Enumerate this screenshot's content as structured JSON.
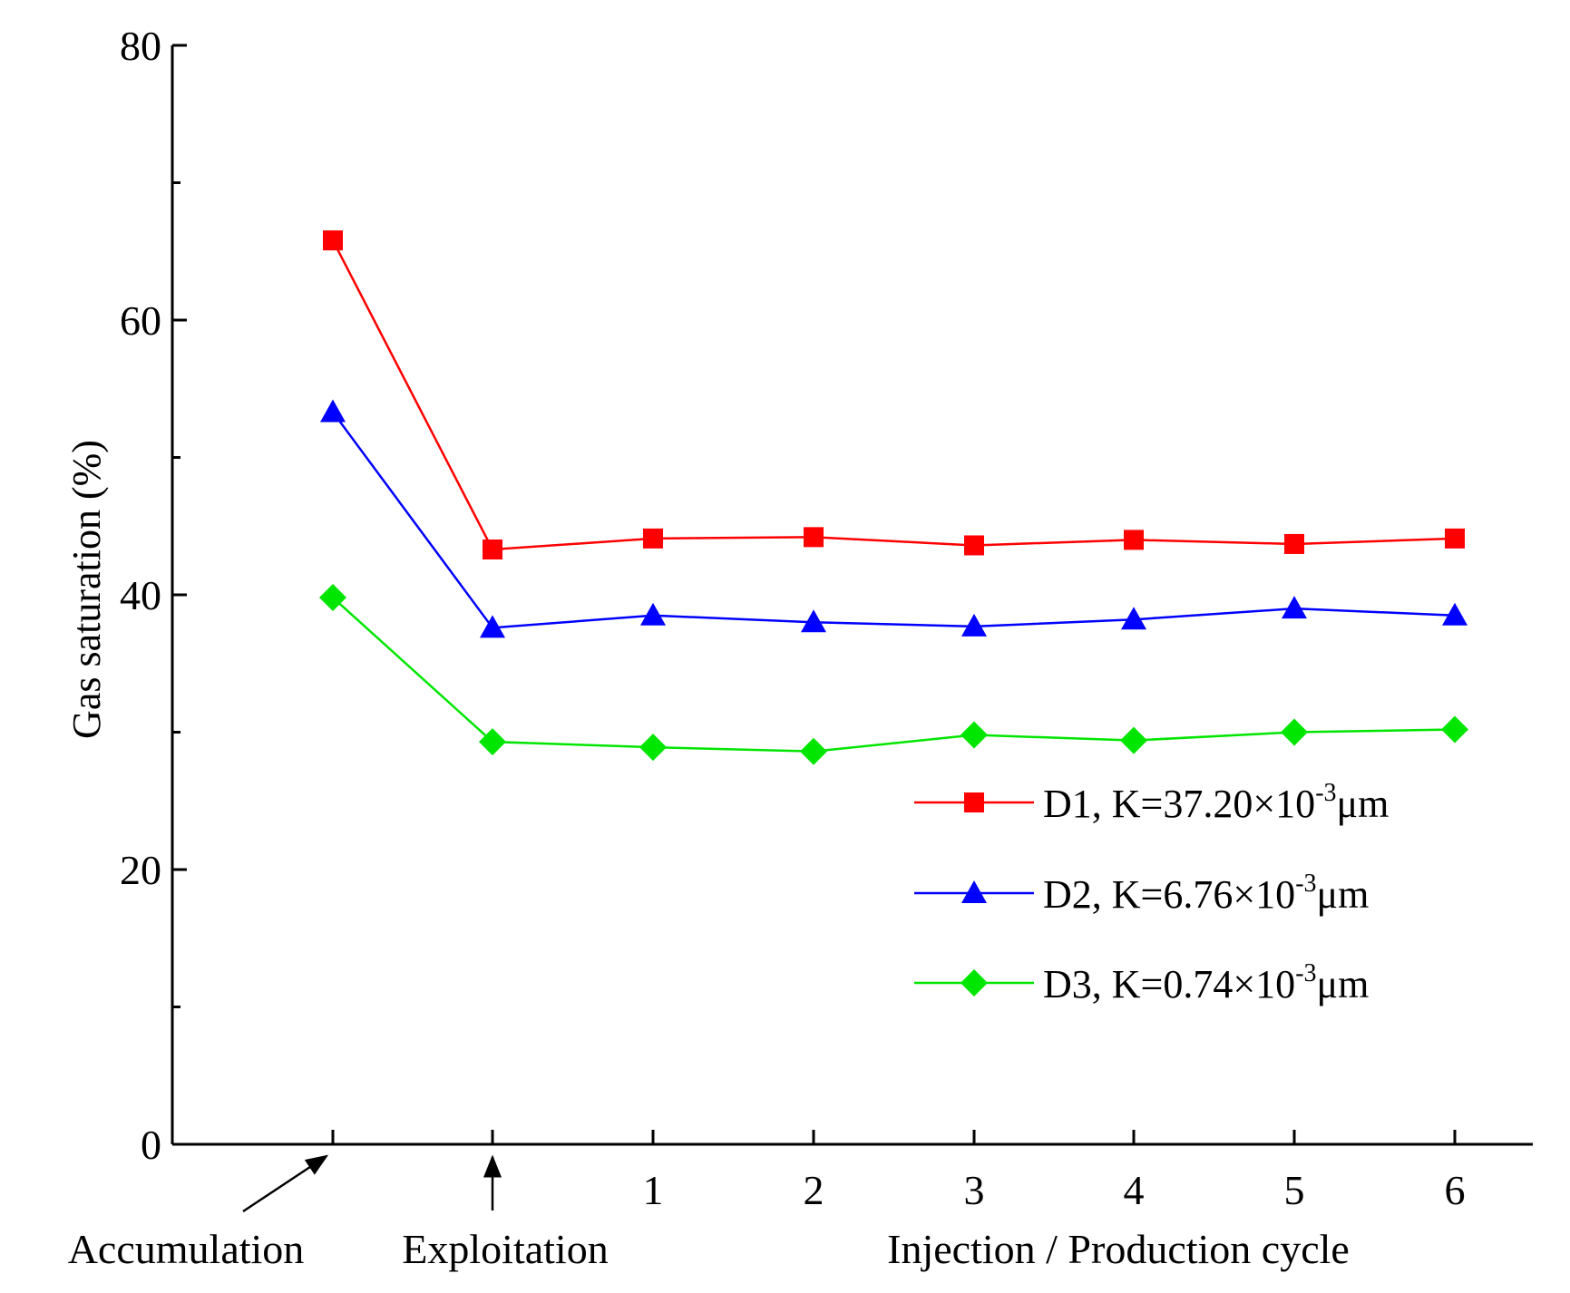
{
  "chart_data": {
    "type": "line",
    "title": "",
    "xlabel": "Injection / Production cycle",
    "ylabel": "Gas saturation (%)",
    "ylim": [
      0,
      80
    ],
    "yticks": [
      "0",
      "20",
      "40",
      "60",
      "80"
    ],
    "categories": [
      "",
      "",
      "1",
      "2",
      "3",
      "4",
      "5",
      "6"
    ],
    "stage_labels": {
      "accumulation": "Accumulation",
      "exploitation": "Exploitation"
    },
    "legend_position": "right",
    "series": [
      {
        "name": "D1",
        "legend_prefix": "D1, K=37.20×10",
        "legend_exp": "-3",
        "legend_unit": "μm",
        "color": "#ff0000",
        "marker": "square",
        "values": [
          65.8,
          43.3,
          44.1,
          44.2,
          43.6,
          44.0,
          43.7,
          44.1
        ]
      },
      {
        "name": "D2",
        "legend_prefix": "D2, K=6.76×10",
        "legend_exp": "-3",
        "legend_unit": "μm",
        "color": "#0000ff",
        "marker": "triangle",
        "values": [
          53.3,
          37.6,
          38.5,
          38.0,
          37.7,
          38.2,
          39.0,
          38.5
        ]
      },
      {
        "name": "D3",
        "legend_prefix": "D3, K=0.74×10",
        "legend_exp": "-3",
        "legend_unit": "μm",
        "color": "#00e600",
        "marker": "diamond",
        "values": [
          39.8,
          29.3,
          28.9,
          28.6,
          29.8,
          29.4,
          30.0,
          30.2
        ]
      }
    ]
  }
}
